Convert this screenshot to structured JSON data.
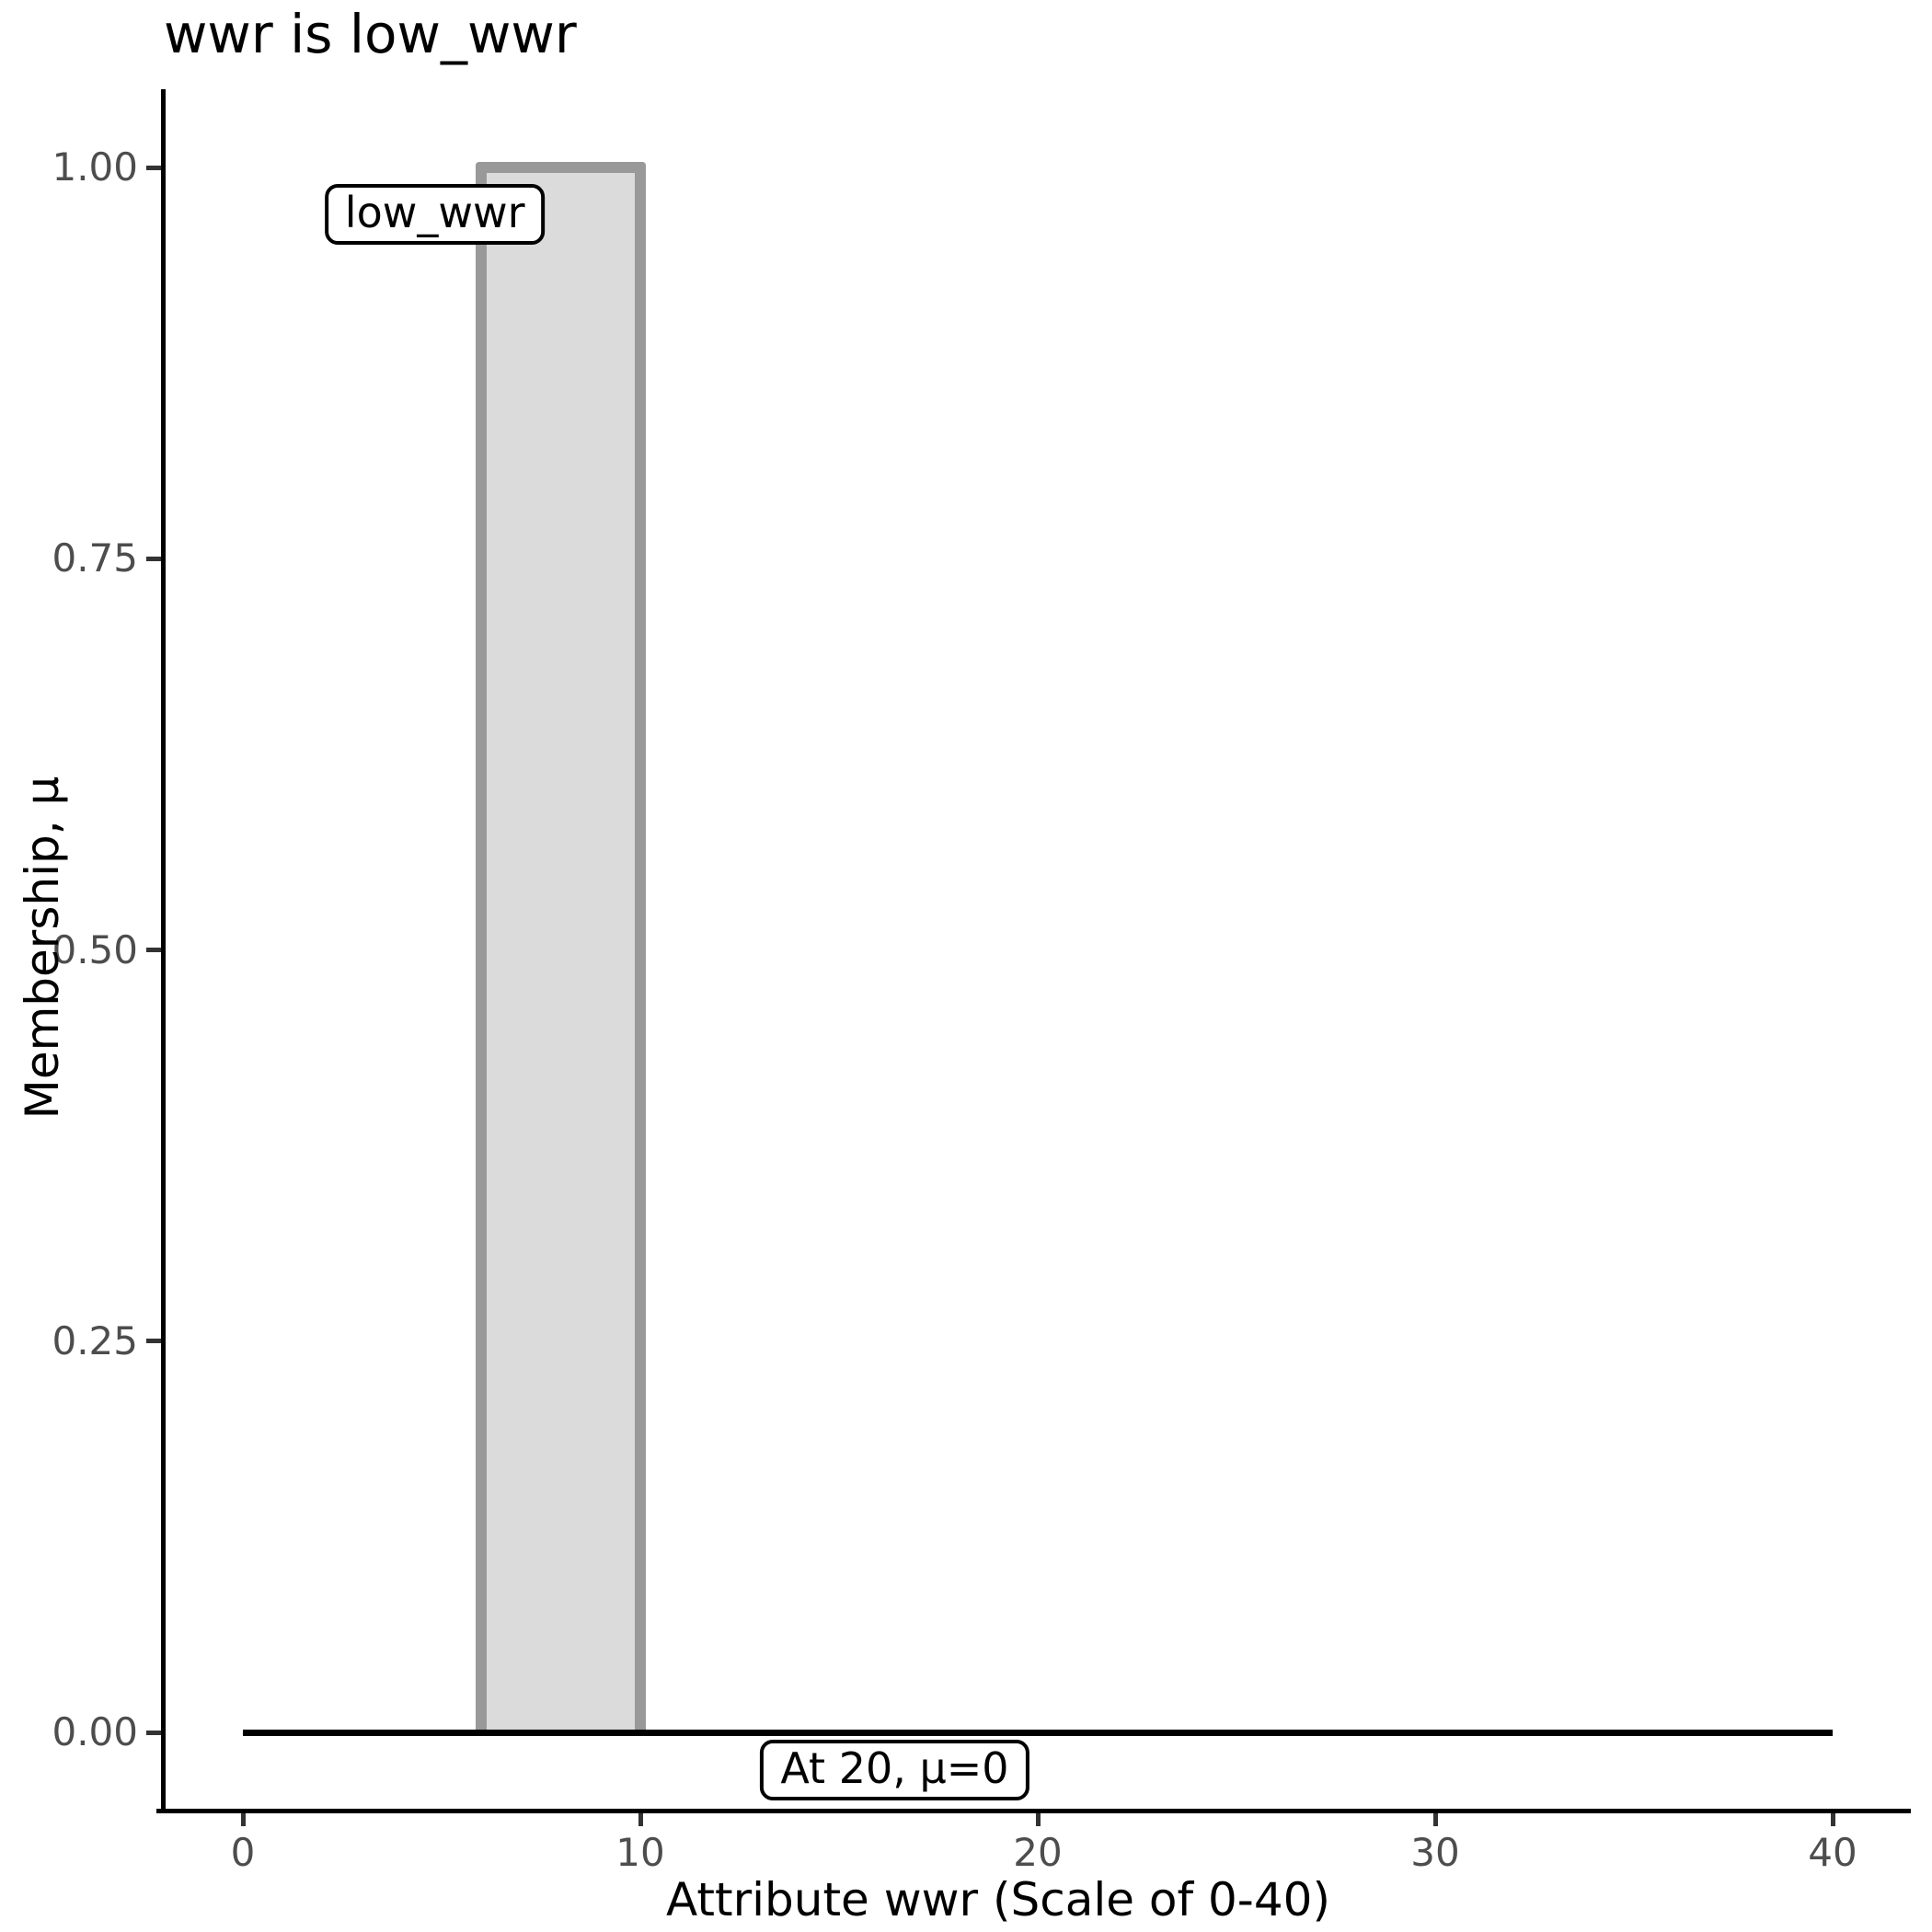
{
  "chart_data": {
    "type": "area",
    "title": "wwr is low_wwr",
    "xlabel": "Attribute wwr (Scale of 0-40)",
    "ylabel": "Membership, μ",
    "xlim": [
      0,
      40
    ],
    "ylim": [
      0,
      1
    ],
    "x_ticks": [
      0,
      10,
      20,
      30,
      40
    ],
    "y_ticks": [
      {
        "value": 0,
        "label": "0.00"
      },
      {
        "value": 0.25,
        "label": "0.25"
      },
      {
        "value": 0.5,
        "label": "0.50"
      },
      {
        "value": 0.75,
        "label": "0.75"
      },
      {
        "value": 1,
        "label": "1.00"
      }
    ],
    "grid": false,
    "legend": false,
    "series": [
      {
        "name": "low_wwr",
        "shape": "rect",
        "x_start": 6,
        "x_end": 10,
        "mu_base": 0,
        "mu_top": 1,
        "fill": "#dbdbdb",
        "stroke": "#999999"
      }
    ],
    "baseline": {
      "mu": 0,
      "x_start": 0,
      "x_end": 40,
      "color": "#000000"
    },
    "annotations": [
      {
        "text": "low_wwr",
        "x": 4.83,
        "mu": 0.97
      },
      {
        "text": "At 20, μ=0",
        "x": 16.4,
        "mu": -0.024
      }
    ],
    "colors": {
      "bar_fill": "#dbdbdb",
      "bar_stroke": "#999999",
      "axis_line": "#000000",
      "tick_mark": "#333333",
      "tick_label": "#4d4d4d",
      "text": "#000000",
      "annotation_bg": "#ffffff",
      "annotation_border": "#000000"
    }
  }
}
